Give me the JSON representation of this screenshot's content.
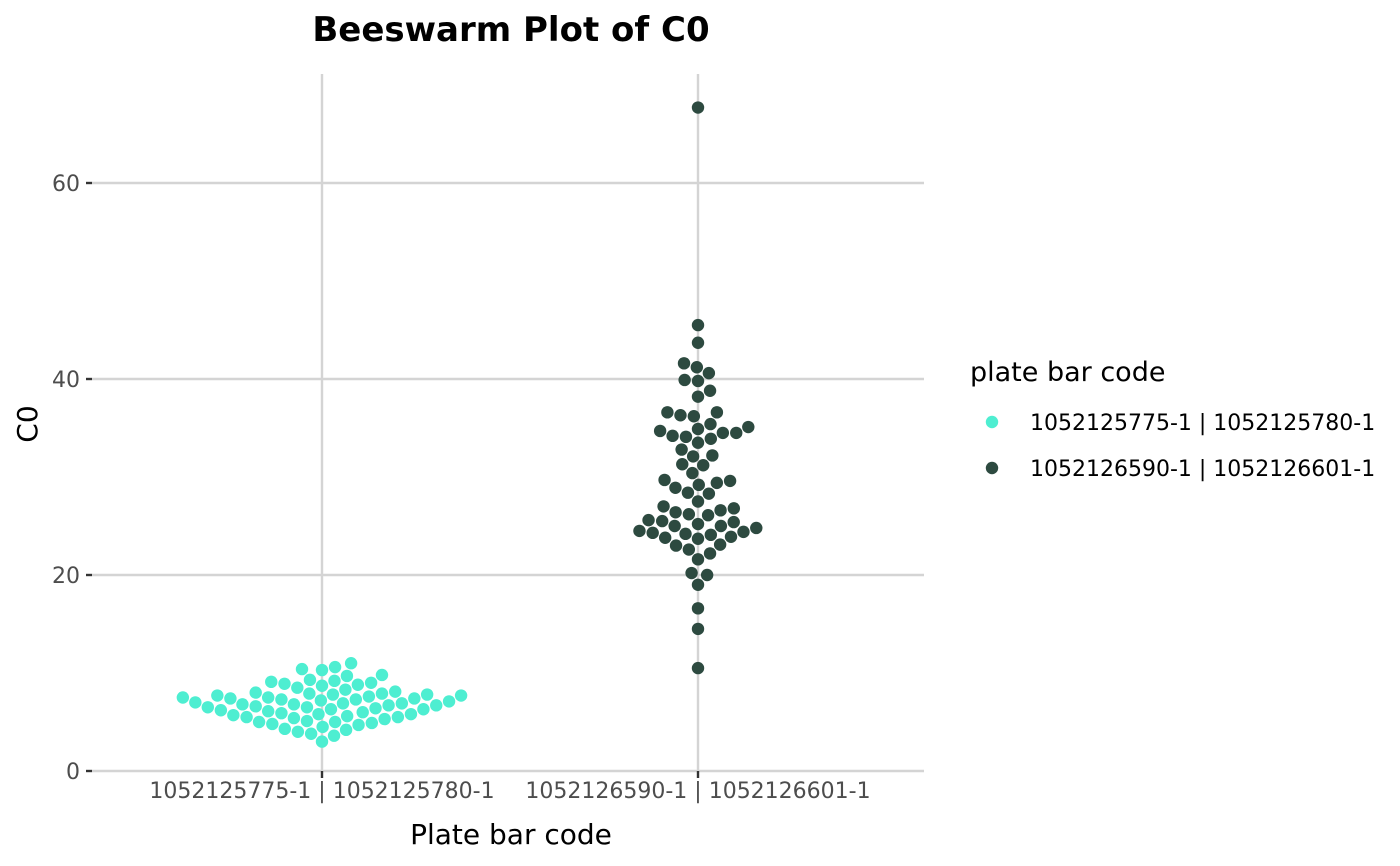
{
  "chart_data": {
    "type": "scatter",
    "subtype": "beeswarm",
    "title": "Beeswarm Plot of C0",
    "xlabel": "Plate bar code",
    "ylabel": "C0",
    "categories": [
      "1052125775-1 | 1052125780-1",
      "1052126590-1 | 1052126601-1"
    ],
    "ylim": [
      0,
      71
    ],
    "yticks": [
      0,
      20,
      40,
      60
    ],
    "grid": true,
    "legend": {
      "title": "plate bar code",
      "placement": "right",
      "entries": [
        "1052125775-1 | 1052125780-1",
        "1052126590-1 | 1052126601-1"
      ]
    },
    "series": [
      {
        "name": "1052125775-1 | 1052125780-1",
        "category": "1052125775-1 | 1052125780-1",
        "color": "#4EEED1",
        "values": [
          3.0,
          3.6,
          3.8,
          4.0,
          4.2,
          4.3,
          4.5,
          4.7,
          4.8,
          4.9,
          5.0,
          5.0,
          5.1,
          5.3,
          5.4,
          5.5,
          5.5,
          5.6,
          5.7,
          5.8,
          5.8,
          5.9,
          6.0,
          6.1,
          6.2,
          6.3,
          6.3,
          6.4,
          6.5,
          6.5,
          6.6,
          6.7,
          6.7,
          6.8,
          6.8,
          6.9,
          6.9,
          7.0,
          7.1,
          7.2,
          7.3,
          7.3,
          7.4,
          7.4,
          7.5,
          7.5,
          7.6,
          7.7,
          7.7,
          7.8,
          7.8,
          7.9,
          7.9,
          8.0,
          8.1,
          8.3,
          8.5,
          8.7,
          8.8,
          8.9,
          9.0,
          9.1,
          9.2,
          9.3,
          9.7,
          9.8,
          10.3,
          10.4,
          10.6,
          11.0
        ]
      },
      {
        "name": "1052126590-1 | 1052126601-1",
        "category": "1052126590-1 | 1052126601-1",
        "color": "#2D4A40",
        "values": [
          10.5,
          14.5,
          16.6,
          19.0,
          20.0,
          20.2,
          21.6,
          22.2,
          22.6,
          23.0,
          23.1,
          23.7,
          23.8,
          23.9,
          24.1,
          24.2,
          24.3,
          24.4,
          24.5,
          24.8,
          25.0,
          25.0,
          25.2,
          25.4,
          25.5,
          25.6,
          26.1,
          26.2,
          26.4,
          26.6,
          26.8,
          27.0,
          27.5,
          28.3,
          28.4,
          28.9,
          29.2,
          29.4,
          29.6,
          29.7,
          30.4,
          31.2,
          31.3,
          32.1,
          32.2,
          32.8,
          33.5,
          33.9,
          34.1,
          34.2,
          34.5,
          34.5,
          34.7,
          34.9,
          35.1,
          35.4,
          36.2,
          36.3,
          36.6,
          36.6,
          38.2,
          38.8,
          39.8,
          39.9,
          40.6,
          41.2,
          41.6,
          43.7,
          45.5,
          67.7
        ]
      }
    ]
  }
}
